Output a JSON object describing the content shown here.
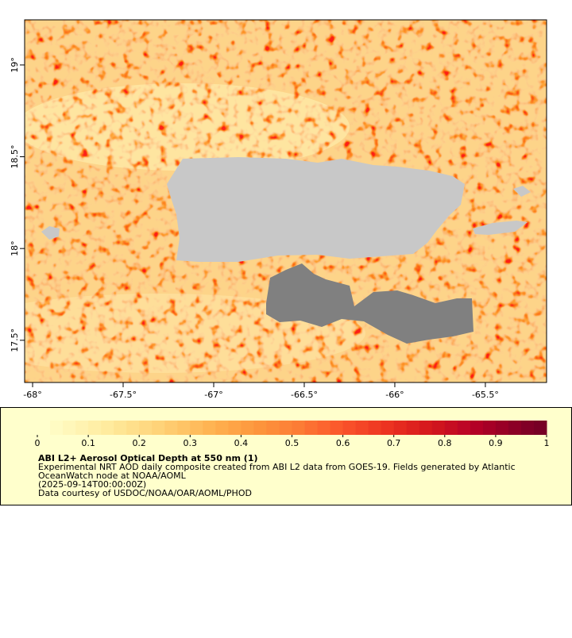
{
  "map": {
    "xlim": [
      -68.044,
      -65.162
    ],
    "ylim": [
      17.27,
      19.246
    ],
    "xticks": [
      {
        "value": -68,
        "label": "-68°"
      },
      {
        "value": -67.5,
        "label": "-67.5°"
      },
      {
        "value": -67,
        "label": "-67°"
      },
      {
        "value": -66.5,
        "label": "-66.5°"
      },
      {
        "value": -66,
        "label": "-66°"
      },
      {
        "value": -65.5,
        "label": "-65.5°"
      }
    ],
    "yticks": [
      {
        "value": 17.5,
        "label": "17.5°"
      },
      {
        "value": 18,
        "label": "18°"
      },
      {
        "value": 18.5,
        "label": "18.5°"
      },
      {
        "value": 19,
        "label": "19°"
      }
    ],
    "land_color": "#c8c8c8",
    "mask_color": "#808080"
  },
  "colorbar": {
    "lim": [
      0,
      1
    ],
    "ticks": [
      0,
      0.1,
      0.2,
      0.3,
      0.4,
      0.5,
      0.6,
      0.7,
      0.8,
      0.9,
      1
    ],
    "colors": [
      "#ffffcc",
      "#fffbc3",
      "#fff7ba",
      "#fff3b1",
      "#ffefa7",
      "#ffeb9e",
      "#fee594",
      "#fedf8b",
      "#fed982",
      "#fed379",
      "#fecb6f",
      "#fec466",
      "#febc5d",
      "#feb453",
      "#feac4c",
      "#fea446",
      "#fd9c41",
      "#fd943c",
      "#fd8c3a",
      "#fd8438",
      "#fc7c35",
      "#fc7032",
      "#fc652f",
      "#fb5a2c",
      "#f84f29",
      "#f44626",
      "#f03c23",
      "#ec3321",
      "#e52a1f",
      "#de221e",
      "#d71a1d",
      "#cf141e",
      "#c60d22",
      "#bd0626",
      "#b30026",
      "#a60026",
      "#990026",
      "#8c0026",
      "#800026",
      "#770025"
    ]
  },
  "legend": {
    "title": "ABI L2+ Aerosol Optical Depth at 550 nm (1)",
    "lines": [
      "Experimental NRT AOD daily composite created from ABI L2 data from GOES-19. Fields generated by Atlantic",
      "OceanWatch node at NOAA/AOML",
      "(2025-09-14T00:00:00Z)",
      "Data courtesy of USDOC/NOAA/OAR/AOML/PHOD"
    ]
  }
}
